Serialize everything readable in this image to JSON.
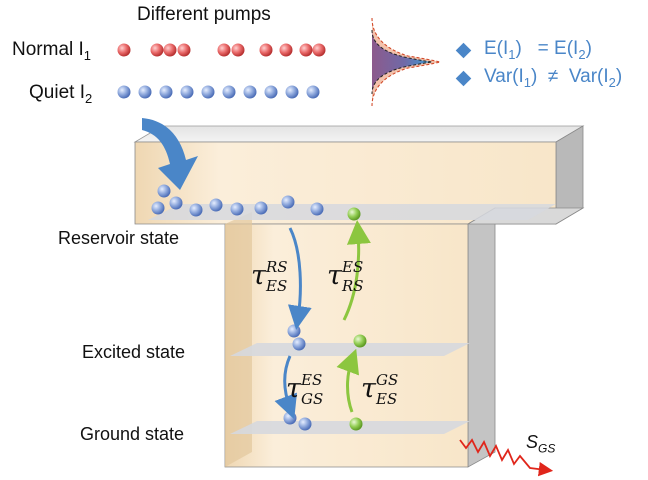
{
  "title": "Different pumps",
  "pumps": {
    "normal_label": "Normal I",
    "normal_sub": "1",
    "quiet_label": "Quiet I",
    "quiet_sub": "2"
  },
  "states": {
    "reservoir": "Reservoir state",
    "excited": "Excited state",
    "ground": "Ground state"
  },
  "statistics": {
    "mean_eq": {
      "left": "E(I",
      "left_sub": "1",
      "mid": ")   = E(I",
      "right_sub": "2",
      "end": ")"
    },
    "var_neq": {
      "left": "Var(I",
      "left_sub": "1",
      "mid": ")  ≠  Var(I",
      "right_sub": "2",
      "end": ")"
    }
  },
  "transitions": {
    "rs_to_es": {
      "symbol": "τ",
      "sup": "RS",
      "sub": "ES"
    },
    "es_to_rs": {
      "symbol": "τ",
      "sup": "ES",
      "sub": "RS"
    },
    "es_to_gs": {
      "symbol": "τ",
      "sup": "ES",
      "sub": "GS"
    },
    "gs_to_es": {
      "symbol": "τ",
      "sup": "GS",
      "sub": "ES"
    }
  },
  "signal": {
    "label": "S",
    "sub": "GS"
  },
  "colors": {
    "normal_pump": "#e45a5a",
    "quiet_pump": "#7f9fd8",
    "green_particle": "#8cc63f",
    "blue_arrow": "#4a86c8",
    "green_arrow": "#8cc63f",
    "structure_face": "#f6e3c6",
    "structure_side": "#c9c9c9",
    "level_plane": "#d9dbe0",
    "signal": "#e0261b"
  },
  "icons": {
    "pump_arrow": "curved-arrow-icon",
    "distribution": "distribution-curve-icon",
    "bullet": "diamond-icon",
    "signal": "wavy-arrow-icon"
  }
}
